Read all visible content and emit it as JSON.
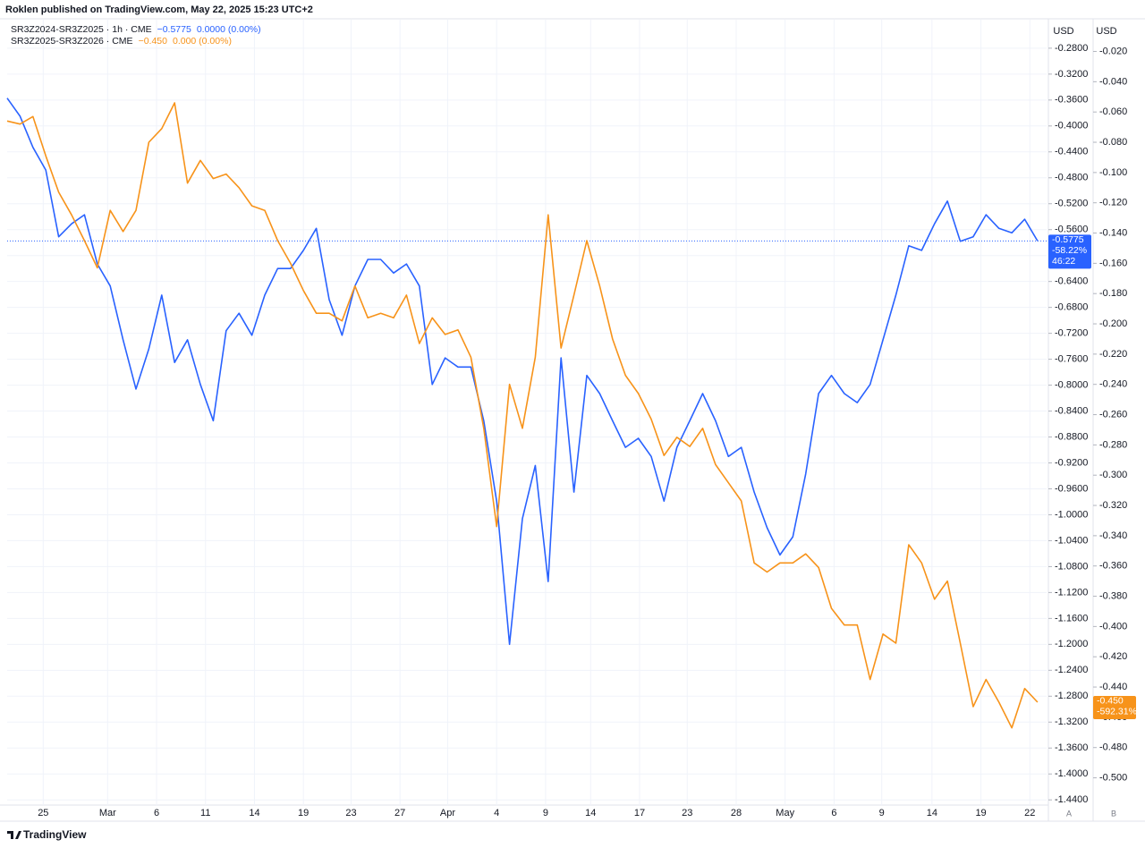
{
  "chart_data": {
    "type": "line",
    "header": "Roklen published on TradingView.com, May 22, 2025 15:23 UTC+2",
    "brand": "TradingView",
    "axis_units": [
      "USD",
      "USD"
    ],
    "scale_modes": [
      "A",
      "B"
    ],
    "grid": true,
    "xlim": [
      0,
      80.7
    ],
    "xticks": [
      {
        "value": 2.8,
        "label": "25"
      },
      {
        "value": 7.8,
        "label": "Mar"
      },
      {
        "value": 11.6,
        "label": "6"
      },
      {
        "value": 15.4,
        "label": "11"
      },
      {
        "value": 19.2,
        "label": "14"
      },
      {
        "value": 23,
        "label": "19"
      },
      {
        "value": 26.7,
        "label": "23"
      },
      {
        "value": 30.5,
        "label": "27"
      },
      {
        "value": 34.2,
        "label": "Apr"
      },
      {
        "value": 38,
        "label": "4"
      },
      {
        "value": 41.8,
        "label": "9"
      },
      {
        "value": 45.3,
        "label": "14"
      },
      {
        "value": 49.1,
        "label": "17"
      },
      {
        "value": 52.8,
        "label": "23"
      },
      {
        "value": 56.6,
        "label": "28"
      },
      {
        "value": 60.4,
        "label": "May"
      },
      {
        "value": 64.2,
        "label": "6"
      },
      {
        "value": 67.9,
        "label": "9"
      },
      {
        "value": 71.8,
        "label": "14"
      },
      {
        "value": 75.6,
        "label": "19"
      },
      {
        "value": 79.4,
        "label": "22"
      }
    ],
    "ylim": [
      -1.448,
      -0.236
    ],
    "yticks": [
      {
        "value": -0.28,
        "label": "-0.2800"
      },
      {
        "value": -0.32,
        "label": "-0.3200"
      },
      {
        "value": -0.36,
        "label": "-0.3600"
      },
      {
        "value": -0.4,
        "label": "-0.4000"
      },
      {
        "value": -0.44,
        "label": "-0.4400"
      },
      {
        "value": -0.48,
        "label": "-0.4800"
      },
      {
        "value": -0.52,
        "label": "-0.5200"
      },
      {
        "value": -0.56,
        "label": "-0.5600"
      },
      {
        "value": -0.6,
        "label": "-0.6000"
      },
      {
        "value": -0.64,
        "label": "-0.6400"
      },
      {
        "value": -0.68,
        "label": "-0.6800"
      },
      {
        "value": -0.72,
        "label": "-0.7200"
      },
      {
        "value": -0.76,
        "label": "-0.7600"
      },
      {
        "value": -0.8,
        "label": "-0.8000"
      },
      {
        "value": -0.84,
        "label": "-0.8400"
      },
      {
        "value": -0.88,
        "label": "-0.8800"
      },
      {
        "value": -0.92,
        "label": "-0.9200"
      },
      {
        "value": -0.96,
        "label": "-0.9600"
      },
      {
        "value": -1.0,
        "label": "-1.0000"
      },
      {
        "value": -1.04,
        "label": "-1.0400"
      },
      {
        "value": -1.08,
        "label": "-1.0800"
      },
      {
        "value": -1.12,
        "label": "-1.1200"
      },
      {
        "value": -1.16,
        "label": "-1.1600"
      },
      {
        "value": -1.2,
        "label": "-1.2000"
      },
      {
        "value": -1.24,
        "label": "-1.2400"
      },
      {
        "value": -1.28,
        "label": "-1.2800"
      },
      {
        "value": -1.32,
        "label": "-1.3200"
      },
      {
        "value": -1.36,
        "label": "-1.3600"
      },
      {
        "value": -1.4,
        "label": "-1.4000"
      },
      {
        "value": -1.44,
        "label": "-1.4400"
      }
    ],
    "y2lim": [
      -0.518,
      0.001
    ],
    "y2ticks": [
      {
        "value": -0.02,
        "label": "-0.020"
      },
      {
        "value": -0.04,
        "label": "-0.040"
      },
      {
        "value": -0.06,
        "label": "-0.060"
      },
      {
        "value": -0.08,
        "label": "-0.080"
      },
      {
        "value": -0.1,
        "label": "-0.100"
      },
      {
        "value": -0.12,
        "label": "-0.120"
      },
      {
        "value": -0.14,
        "label": "-0.140"
      },
      {
        "value": -0.16,
        "label": "-0.160"
      },
      {
        "value": -0.18,
        "label": "-0.180"
      },
      {
        "value": -0.2,
        "label": "-0.200"
      },
      {
        "value": -0.22,
        "label": "-0.220"
      },
      {
        "value": -0.24,
        "label": "-0.240"
      },
      {
        "value": -0.26,
        "label": "-0.260"
      },
      {
        "value": -0.28,
        "label": "-0.280"
      },
      {
        "value": -0.3,
        "label": "-0.300"
      },
      {
        "value": -0.32,
        "label": "-0.320"
      },
      {
        "value": -0.34,
        "label": "-0.340"
      },
      {
        "value": -0.36,
        "label": "-0.360"
      },
      {
        "value": -0.38,
        "label": "-0.380"
      },
      {
        "value": -0.4,
        "label": "-0.400"
      },
      {
        "value": -0.42,
        "label": "-0.420"
      },
      {
        "value": -0.44,
        "label": "-0.440"
      },
      {
        "value": -0.46,
        "label": "-0.460"
      },
      {
        "value": -0.48,
        "label": "-0.480"
      },
      {
        "value": -0.5,
        "label": "-0.500"
      }
    ],
    "series": [
      {
        "name": "SR3Z2024-SR3Z2025 · 1h · CME",
        "color": "#2962ff",
        "axis": "y",
        "last_label": "−0.5775",
        "change_label": "0.0000 (0.00%)",
        "tag_labels": [
          "-0.5775",
          "-58.22%",
          "46:22"
        ],
        "values": [
          -0.357,
          -0.385,
          -0.433,
          -0.468,
          -0.571,
          -0.551,
          -0.537,
          -0.613,
          -0.647,
          -0.73,
          -0.806,
          -0.744,
          -0.661,
          -0.765,
          -0.73,
          -0.799,
          -0.855,
          -0.716,
          -0.689,
          -0.723,
          -0.661,
          -0.62,
          -0.62,
          -0.592,
          -0.558,
          -0.668,
          -0.723,
          -0.647,
          -0.606,
          -0.606,
          -0.627,
          -0.613,
          -0.647,
          -0.799,
          -0.758,
          -0.772,
          -0.772,
          -0.855,
          -0.979,
          -1.2,
          -1.006,
          -0.924,
          -1.103,
          -0.758,
          -0.965,
          -0.785,
          -0.813,
          -0.855,
          -0.896,
          -0.882,
          -0.91,
          -0.979,
          -0.896,
          -0.855,
          -0.813,
          -0.855,
          -0.91,
          -0.896,
          -0.965,
          -1.02,
          -1.062,
          -1.034,
          -0.937,
          -0.813,
          -0.785,
          -0.813,
          -0.827,
          -0.799,
          -0.73,
          -0.661,
          -0.585,
          -0.592,
          -0.551,
          -0.516,
          -0.578,
          -0.571,
          -0.537,
          -0.558,
          -0.565,
          -0.544,
          -0.5775
        ]
      },
      {
        "name": "SR3Z2025-SR3Z2026 · CME",
        "color": "#f7931a",
        "axis": "y2",
        "last_label": "−0.450",
        "change_label": "0.000 (0.00%)",
        "tag_labels": [
          "-0.450",
          "-592.31%"
        ],
        "values": [
          -0.066,
          -0.068,
          -0.063,
          -0.089,
          -0.113,
          -0.128,
          -0.145,
          -0.163,
          -0.125,
          -0.139,
          -0.125,
          -0.08,
          -0.071,
          -0.054,
          -0.107,
          -0.092,
          -0.104,
          -0.101,
          -0.11,
          -0.122,
          -0.125,
          -0.145,
          -0.16,
          -0.178,
          -0.193,
          -0.193,
          -0.198,
          -0.175,
          -0.196,
          -0.193,
          -0.196,
          -0.181,
          -0.213,
          -0.196,
          -0.207,
          -0.204,
          -0.222,
          -0.269,
          -0.334,
          -0.24,
          -0.269,
          -0.222,
          -0.128,
          -0.216,
          -0.181,
          -0.145,
          -0.175,
          -0.21,
          -0.234,
          -0.246,
          -0.263,
          -0.287,
          -0.275,
          -0.281,
          -0.269,
          -0.293,
          -0.305,
          -0.317,
          -0.358,
          -0.364,
          -0.358,
          -0.358,
          -0.352,
          -0.361,
          -0.388,
          -0.399,
          -0.399,
          -0.435,
          -0.405,
          -0.411,
          -0.346,
          -0.358,
          -0.382,
          -0.37,
          -0.411,
          -0.453,
          -0.435,
          -0.45,
          -0.467,
          -0.441,
          -0.45
        ]
      }
    ]
  }
}
